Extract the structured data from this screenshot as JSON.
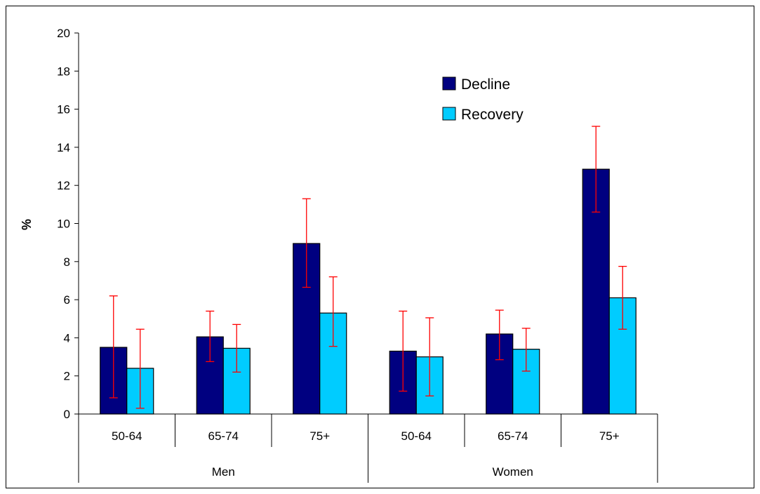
{
  "chart_data": {
    "type": "bar",
    "groups": [
      {
        "label": "Men",
        "categories": [
          "50-64",
          "65-74",
          "75+"
        ]
      },
      {
        "label": "Women",
        "categories": [
          "50-64",
          "65-74",
          "75+"
        ]
      }
    ],
    "categories": [
      "50-64",
      "65-74",
      "75+",
      "50-64",
      "65-74",
      "75+"
    ],
    "series": [
      {
        "name": "Decline",
        "color": "#000080",
        "values": [
          3.5,
          4.05,
          8.95,
          3.3,
          4.2,
          12.85
        ],
        "error_low": [
          0.85,
          2.75,
          6.65,
          1.2,
          2.85,
          10.6
        ],
        "error_high": [
          6.2,
          5.4,
          11.3,
          5.4,
          5.45,
          15.1
        ]
      },
      {
        "name": "Recovery",
        "color": "#00CCFF",
        "values": [
          2.4,
          3.45,
          5.3,
          3.0,
          3.4,
          6.1
        ],
        "error_low": [
          0.3,
          2.2,
          3.55,
          0.95,
          2.25,
          4.45
        ],
        "error_high": [
          4.45,
          4.7,
          7.2,
          5.05,
          4.5,
          7.75
        ]
      }
    ],
    "error_bar_color": "#FF0000",
    "ylabel": "%",
    "xlabel": "",
    "title": "",
    "ylim": [
      0,
      20
    ],
    "yticks": [
      0,
      2,
      4,
      6,
      8,
      10,
      12,
      14,
      16,
      18,
      20
    ],
    "grid": false,
    "legend_position": "top-right"
  }
}
